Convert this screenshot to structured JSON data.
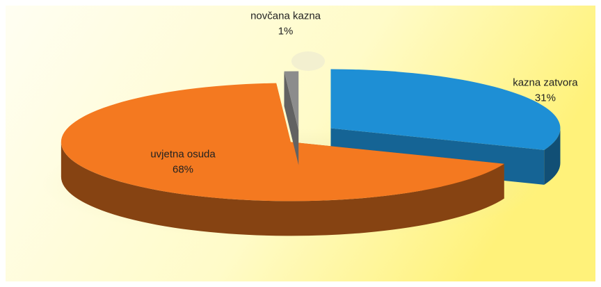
{
  "chart_data": {
    "type": "pie",
    "categories": [
      "kazna zatvora",
      "uvjetna osuda",
      "novčana kazna"
    ],
    "values": [
      31,
      68,
      1
    ],
    "value_labels": [
      "31%",
      "68%",
      "1%"
    ],
    "colors": [
      "#1e8fd5",
      "#f47920",
      "#8c8c8c"
    ]
  }
}
